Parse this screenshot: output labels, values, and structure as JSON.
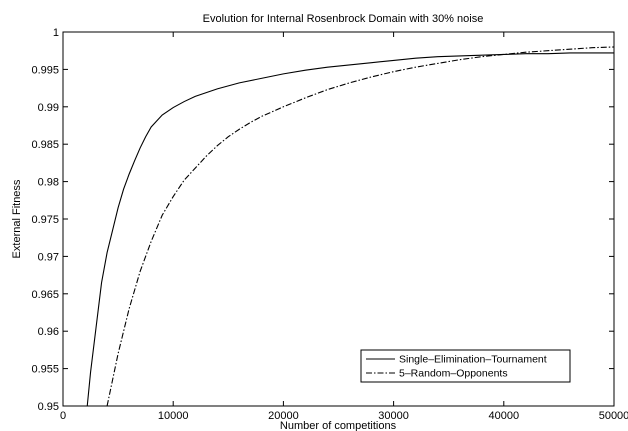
{
  "chart_data": {
    "type": "line",
    "title": "Evolution for Internal Rosenbrock Domain with 30% noise",
    "xlabel": "Number of competitions",
    "ylabel": "External Fitness",
    "xlim": [
      0,
      50000
    ],
    "ylim": [
      0.95,
      1.0
    ],
    "xticks": [
      0,
      10000,
      20000,
      30000,
      40000,
      50000
    ],
    "yticks": [
      0.95,
      0.955,
      0.96,
      0.965,
      0.97,
      0.975,
      0.98,
      0.985,
      0.99,
      0.995,
      1
    ],
    "xtick_labels": [
      "0",
      "10000",
      "20000",
      "30000",
      "40000",
      "50000"
    ],
    "ytick_labels": [
      "0.95",
      "0.955",
      "0.96",
      "0.965",
      "0.97",
      "0.975",
      "0.98",
      "0.985",
      "0.99",
      "0.995",
      "1"
    ],
    "grid": false,
    "legend_position": "bottom-right",
    "series": [
      {
        "name": "Single–Elimination–Tournament",
        "style": "solid",
        "color": "#000000",
        "x": [
          2200,
          2500,
          3000,
          3500,
          4000,
          4500,
          5000,
          5500,
          6000,
          6500,
          7000,
          7500,
          8000,
          9000,
          10000,
          11000,
          12000,
          13000,
          14000,
          15000,
          16000,
          18000,
          20000,
          22000,
          24000,
          26000,
          28000,
          30000,
          32000,
          34000,
          36000,
          38000,
          40000,
          42000,
          44000,
          46000,
          48000,
          50000
        ],
        "y": [
          0.95,
          0.9545,
          0.9605,
          0.9665,
          0.9705,
          0.9735,
          0.9765,
          0.979,
          0.981,
          0.9828,
          0.9845,
          0.986,
          0.9873,
          0.9889,
          0.9899,
          0.9907,
          0.9914,
          0.9919,
          0.9924,
          0.9928,
          0.9932,
          0.9938,
          0.9944,
          0.9949,
          0.9953,
          0.9956,
          0.9959,
          0.9962,
          0.9965,
          0.9967,
          0.9968,
          0.9969,
          0.997,
          0.9971,
          0.9971,
          0.9972,
          0.9972,
          0.9972
        ]
      },
      {
        "name": "5–Random–Opponents",
        "style": "dashdot",
        "color": "#000000",
        "x": [
          4000,
          4500,
          5000,
          6000,
          7000,
          8000,
          9000,
          10000,
          11000,
          12000,
          13000,
          14000,
          15000,
          16000,
          17000,
          18000,
          20000,
          22000,
          24000,
          26000,
          28000,
          30000,
          32000,
          34000,
          36000,
          38000,
          40000,
          42000,
          44000,
          46000,
          48000,
          50000
        ],
        "y": [
          0.95,
          0.9535,
          0.957,
          0.963,
          0.968,
          0.972,
          0.9755,
          0.978,
          0.9802,
          0.9818,
          0.9834,
          0.9848,
          0.986,
          0.987,
          0.9879,
          0.9887,
          0.99,
          0.9912,
          0.9923,
          0.9932,
          0.994,
          0.9947,
          0.9953,
          0.9958,
          0.9963,
          0.9967,
          0.997,
          0.9973,
          0.9975,
          0.9977,
          0.9979,
          0.998
        ]
      }
    ]
  }
}
